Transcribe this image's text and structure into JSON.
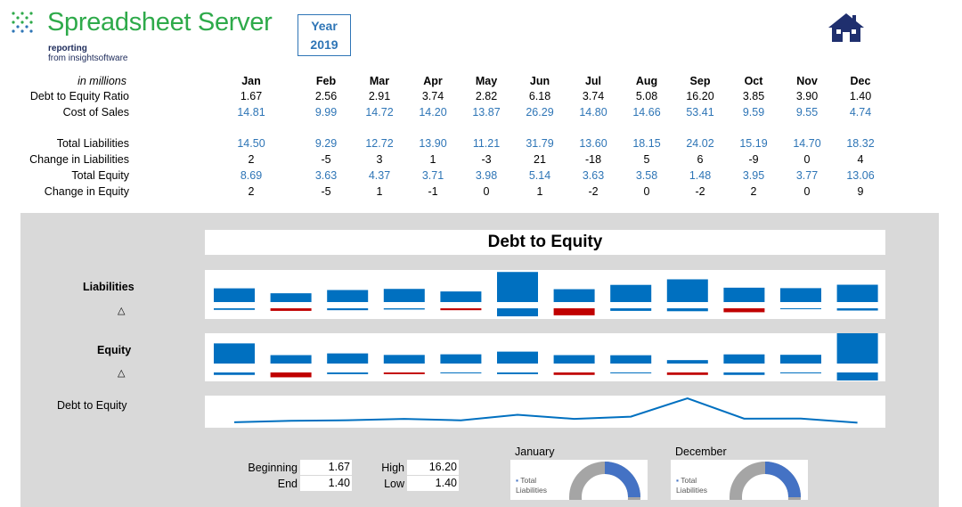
{
  "header": {
    "brand": "Spreadsheet Server",
    "tagline_1": "reporting",
    "tagline_2": "from insightsoftware",
    "year_label": "Year",
    "year_value": "2019"
  },
  "colors": {
    "brand_green": "#2eaa4a",
    "accent_blue": "#2e75b6",
    "bar_blue": "#0070c0",
    "neg_red": "#c00000",
    "home_navy": "#1f2f6e"
  },
  "table": {
    "units_label": "in millions",
    "months": [
      "Jan",
      "Feb",
      "Mar",
      "Apr",
      "May",
      "Jun",
      "Jul",
      "Aug",
      "Sep",
      "Oct",
      "Nov",
      "Dec"
    ],
    "rows": [
      {
        "label": "Debt to Equity Ratio",
        "values": [
          "1.67",
          "2.56",
          "2.91",
          "3.74",
          "2.82",
          "6.18",
          "3.74",
          "5.08",
          "16.20",
          "3.85",
          "3.90",
          "1.40"
        ],
        "blue": false
      },
      {
        "label": "Cost of Sales",
        "values": [
          "14.81",
          "9.99",
          "14.72",
          "14.20",
          "13.87",
          "26.29",
          "14.80",
          "14.66",
          "53.41",
          "9.59",
          "9.55",
          "4.74"
        ],
        "blue": true
      },
      {
        "label": "Total Liabilities",
        "values": [
          "14.50",
          "9.29",
          "12.72",
          "13.90",
          "11.21",
          "31.79",
          "13.60",
          "18.15",
          "24.02",
          "15.19",
          "14.70",
          "18.32"
        ],
        "blue": true
      },
      {
        "label": "Change in Liabilities",
        "values": [
          "2",
          "-5",
          "3",
          "1",
          "-3",
          "21",
          "-18",
          "5",
          "6",
          "-9",
          "0",
          "4"
        ],
        "blue": false
      },
      {
        "label": "Total Equity",
        "values": [
          "8.69",
          "3.63",
          "4.37",
          "3.71",
          "3.98",
          "5.14",
          "3.63",
          "3.58",
          "1.48",
          "3.95",
          "3.77",
          "13.06"
        ],
        "blue": true
      },
      {
        "label": "Change in Equity",
        "values": [
          "2",
          "-5",
          "1",
          "-1",
          "0",
          "1",
          "-2",
          "0",
          "-2",
          "2",
          "0",
          "9"
        ],
        "blue": false
      }
    ]
  },
  "dashboard": {
    "title": "Debt to Equity",
    "liabilities_label": "Liabilities",
    "equity_label": "Equity",
    "delta_symbol": "△",
    "dte_label": "Debt to Equity",
    "stats": {
      "beginning_label": "Beginning",
      "beginning_value": "1.67",
      "end_label": "End",
      "end_value": "1.40",
      "high_label": "High",
      "high_value": "16.20",
      "low_label": "Low",
      "low_value": "1.40"
    },
    "donuts": [
      {
        "title": "January",
        "legend": "Total Liabilities"
      },
      {
        "title": "December",
        "legend": "Total Liabilities"
      }
    ]
  },
  "chart_data": [
    {
      "type": "bar",
      "title": "Liabilities",
      "categories": [
        "Jan",
        "Feb",
        "Mar",
        "Apr",
        "May",
        "Jun",
        "Jul",
        "Aug",
        "Sep",
        "Oct",
        "Nov",
        "Dec"
      ],
      "series": [
        {
          "name": "Total Liabilities",
          "values": [
            14.5,
            9.29,
            12.72,
            13.9,
            11.21,
            31.79,
            13.6,
            18.15,
            24.02,
            15.19,
            14.7,
            18.32
          ]
        },
        {
          "name": "Change in Liabilities",
          "values": [
            2,
            -5,
            3,
            1,
            -3,
            21,
            -18,
            5,
            6,
            -9,
            0,
            4
          ]
        }
      ]
    },
    {
      "type": "bar",
      "title": "Equity",
      "categories": [
        "Jan",
        "Feb",
        "Mar",
        "Apr",
        "May",
        "Jun",
        "Jul",
        "Aug",
        "Sep",
        "Oct",
        "Nov",
        "Dec"
      ],
      "series": [
        {
          "name": "Total Equity",
          "values": [
            8.69,
            3.63,
            4.37,
            3.71,
            3.98,
            5.14,
            3.63,
            3.58,
            1.48,
            3.95,
            3.77,
            13.06
          ]
        },
        {
          "name": "Change in Equity",
          "values": [
            2,
            -5,
            1,
            -1,
            0,
            1,
            -2,
            0,
            -2,
            2,
            0,
            9
          ]
        }
      ]
    },
    {
      "type": "line",
      "title": "Debt to Equity",
      "categories": [
        "Jan",
        "Feb",
        "Mar",
        "Apr",
        "May",
        "Jun",
        "Jul",
        "Aug",
        "Sep",
        "Oct",
        "Nov",
        "Dec"
      ],
      "values": [
        1.67,
        2.56,
        2.91,
        3.74,
        2.82,
        6.18,
        3.74,
        5.08,
        16.2,
        3.85,
        3.9,
        1.4
      ]
    }
  ]
}
